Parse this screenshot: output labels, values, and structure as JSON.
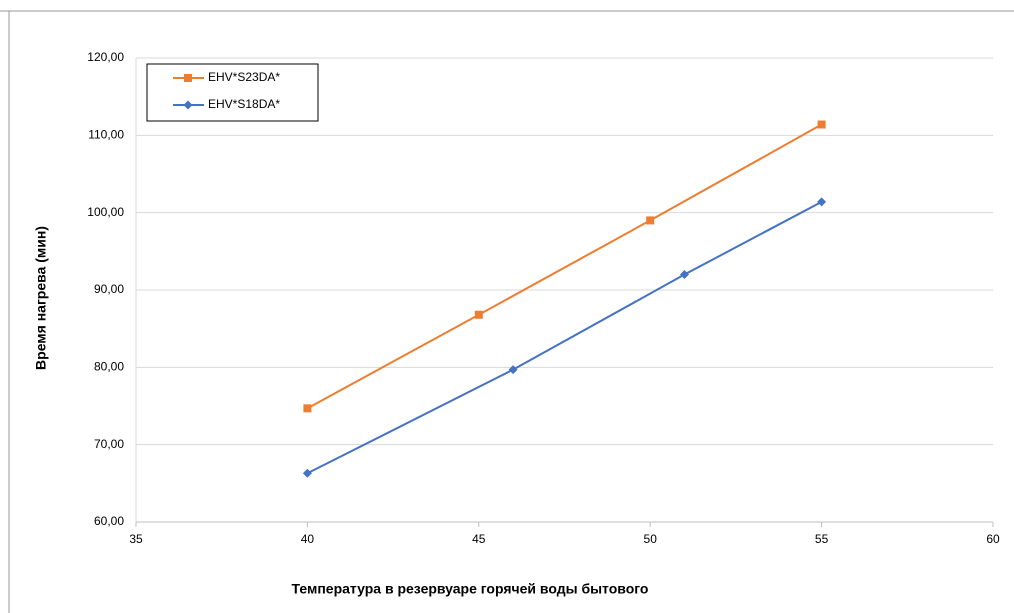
{
  "chart_data": {
    "type": "line",
    "xlabel": "Температура в резервуаре горячей воды бытового",
    "ylabel": "Время нагрева (мин)",
    "xlim": [
      35,
      60
    ],
    "xticks": [
      35,
      40,
      45,
      50,
      55,
      60
    ],
    "ylim": [
      60,
      120
    ],
    "yticks": [
      {
        "value": 60,
        "label": "60,00"
      },
      {
        "value": 70,
        "label": "70,00"
      },
      {
        "value": 80,
        "label": "80,00"
      },
      {
        "value": 90,
        "label": "90,00"
      },
      {
        "value": 100,
        "label": "100,00"
      },
      {
        "value": 110,
        "label": "110,00"
      },
      {
        "value": 120,
        "label": "120,00"
      }
    ],
    "grid": true,
    "legend": "upper left",
    "series": [
      {
        "name": "EHV*S23DA*",
        "color": "#ed7d31",
        "marker": "square",
        "x": [
          40,
          45,
          50,
          55
        ],
        "values": [
          74.7,
          86.8,
          99.0,
          111.4
        ]
      },
      {
        "name": "EHV*S18DA*",
        "color": "#4472c4",
        "marker": "diamond",
        "x": [
          40,
          46,
          51,
          55
        ],
        "values": [
          66.3,
          79.7,
          92.0,
          101.4
        ]
      }
    ]
  }
}
